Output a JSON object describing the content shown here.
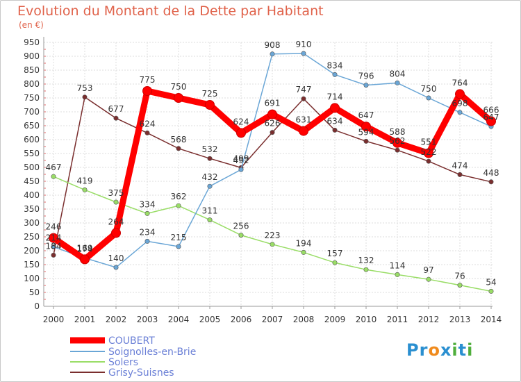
{
  "chart_data": {
    "type": "line",
    "title": "Evolution du Montant de la Dette par Habitant",
    "subtitle": "(en €)",
    "x": [
      "2000",
      "2001",
      "2002",
      "2003",
      "2004",
      "2005",
      "2006",
      "2007",
      "2008",
      "2009",
      "2010",
      "2011",
      "2012",
      "2013",
      "2014"
    ],
    "ylim": [
      0,
      950
    ],
    "yticks": [
      0,
      50,
      100,
      150,
      200,
      250,
      300,
      350,
      400,
      450,
      500,
      550,
      600,
      650,
      700,
      750,
      800,
      850,
      900,
      950
    ],
    "grid": true,
    "legend": "bottom-left",
    "series": [
      {
        "name": "COUBERT",
        "color": "#ff0000",
        "values": [
          246,
          169,
          264,
          775,
          750,
          725,
          624,
          691,
          631,
          714,
          647,
          588,
          551,
          764,
          666
        ]
      },
      {
        "name": "Soignolles-en-Brie",
        "color": "#6aa6d6",
        "values": [
          214,
          174,
          140,
          234,
          215,
          432,
          492,
          908,
          910,
          834,
          796,
          804,
          750,
          698,
          647
        ]
      },
      {
        "name": "Solers",
        "color": "#99dd66",
        "values": [
          467,
          419,
          375,
          334,
          362,
          311,
          256,
          223,
          194,
          157,
          132,
          114,
          97,
          76,
          54
        ]
      },
      {
        "name": "Grisy-Suisnes",
        "color": "#7a2e2e",
        "values": [
          184,
          753,
          677,
          624,
          568,
          532,
          499,
          626,
          747,
          634,
          594,
          562,
          522,
          474,
          448
        ]
      }
    ]
  },
  "logo": {
    "text": "Proxiti",
    "letters": [
      "P",
      "r",
      "o",
      "x",
      "i",
      "t",
      "i"
    ],
    "colors": [
      "#2a8fd0",
      "#2a8fd0",
      "#f08a1c",
      "#2a8fd0",
      "#4fae3c",
      "#2a8fd0",
      "#4fae3c"
    ]
  }
}
